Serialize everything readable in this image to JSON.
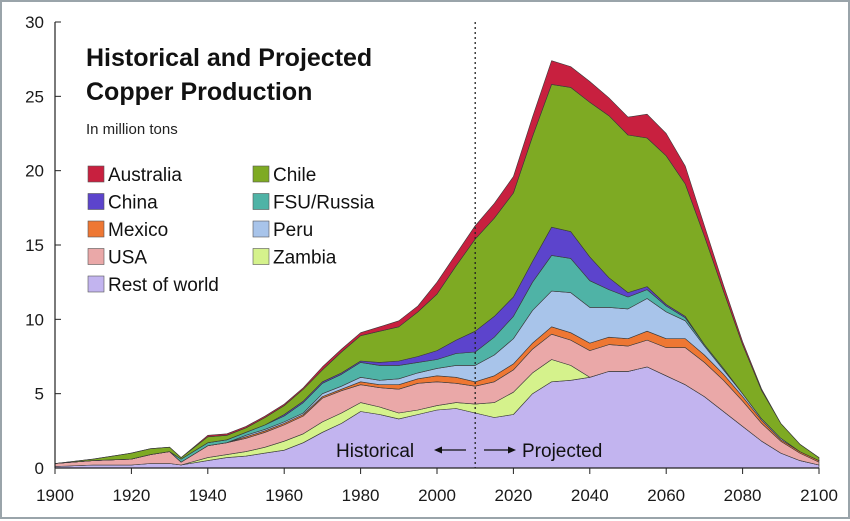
{
  "chart_data": {
    "type": "area",
    "title": "Historical and Projected Copper Production",
    "subtitle": "In million tons",
    "xlabel": "",
    "ylabel": "",
    "xlim": [
      1900,
      2100
    ],
    "ylim": [
      0,
      30
    ],
    "x_ticks": [
      1900,
      1920,
      1940,
      1960,
      1980,
      2000,
      2020,
      2040,
      2060,
      2080,
      2100
    ],
    "y_ticks": [
      0,
      5,
      10,
      15,
      20,
      25,
      30
    ],
    "divider_year": 2010,
    "annotations": {
      "historical": "Historical",
      "projected": "Projected"
    },
    "legend_position": "top-left",
    "x": [
      1900,
      1910,
      1920,
      1925,
      1930,
      1933,
      1940,
      1945,
      1950,
      1955,
      1960,
      1965,
      1970,
      1975,
      1980,
      1985,
      1990,
      1995,
      2000,
      2005,
      2010,
      2015,
      2020,
      2025,
      2030,
      2035,
      2040,
      2045,
      2050,
      2055,
      2060,
      2065,
      2070,
      2075,
      2080,
      2085,
      2090,
      2095,
      2100
    ],
    "series": [
      {
        "name": "Rest of world",
        "color": "#c2b4ef",
        "values": [
          0.1,
          0.2,
          0.2,
          0.3,
          0.3,
          0.2,
          0.5,
          0.7,
          0.8,
          1.0,
          1.2,
          1.7,
          2.4,
          3.0,
          3.8,
          3.6,
          3.3,
          3.6,
          3.9,
          4.0,
          3.7,
          3.4,
          3.6,
          5.0,
          5.8,
          5.9,
          6.1,
          6.5,
          6.5,
          6.8,
          6.2,
          5.6,
          4.8,
          3.8,
          2.8,
          1.8,
          1.0,
          0.5,
          0.2
        ]
      },
      {
        "name": "Zambia",
        "color": "#d5f28c",
        "values": [
          0.0,
          0.0,
          0.0,
          0.0,
          0.0,
          0.0,
          0.2,
          0.2,
          0.3,
          0.4,
          0.6,
          0.6,
          0.7,
          0.7,
          0.6,
          0.5,
          0.4,
          0.3,
          0.3,
          0.4,
          0.6,
          1.0,
          1.5,
          1.4,
          1.5,
          1.0,
          0.0,
          0.0,
          0.0,
          0.0,
          0.0,
          0.0,
          0.0,
          0.0,
          0.0,
          0.0,
          0.0,
          0.0,
          0.0
        ]
      },
      {
        "name": "USA",
        "color": "#eaa8a8",
        "values": [
          0.2,
          0.3,
          0.4,
          0.6,
          0.8,
          0.2,
          0.8,
          0.8,
          0.9,
          1.0,
          1.1,
          1.2,
          1.6,
          1.5,
          1.2,
          1.3,
          1.6,
          1.8,
          1.6,
          1.3,
          1.2,
          1.4,
          1.5,
          1.6,
          1.7,
          1.7,
          1.8,
          1.8,
          1.7,
          1.8,
          1.9,
          2.5,
          2.3,
          2.1,
          1.7,
          1.2,
          0.8,
          0.5,
          0.2
        ]
      },
      {
        "name": "Mexico",
        "color": "#ee7733",
        "values": [
          0.0,
          0.0,
          0.0,
          0.0,
          0.0,
          0.0,
          0.0,
          0.0,
          0.1,
          0.1,
          0.1,
          0.1,
          0.1,
          0.1,
          0.2,
          0.2,
          0.3,
          0.3,
          0.4,
          0.4,
          0.3,
          0.4,
          0.4,
          0.4,
          0.5,
          0.5,
          0.5,
          0.5,
          0.5,
          0.6,
          0.6,
          0.6,
          0.5,
          0.4,
          0.3,
          0.2,
          0.1,
          0.1,
          0.1
        ]
      },
      {
        "name": "Peru",
        "color": "#a8c4ea",
        "values": [
          0.0,
          0.0,
          0.0,
          0.0,
          0.0,
          0.0,
          0.0,
          0.0,
          0.1,
          0.1,
          0.1,
          0.1,
          0.2,
          0.2,
          0.3,
          0.3,
          0.4,
          0.4,
          0.5,
          0.8,
          1.1,
          1.4,
          1.7,
          2.2,
          2.4,
          2.7,
          2.4,
          2.0,
          2.0,
          2.2,
          1.8,
          1.2,
          0.6,
          0.3,
          0.2,
          0.1,
          0.1,
          0.0,
          0.0
        ]
      },
      {
        "name": "FSU/Russia",
        "color": "#4fb3a6",
        "values": [
          0.0,
          0.0,
          0.0,
          0.0,
          0.0,
          0.2,
          0.2,
          0.2,
          0.2,
          0.3,
          0.4,
          0.7,
          0.7,
          0.8,
          1.0,
          1.0,
          0.9,
          0.7,
          0.6,
          0.8,
          0.9,
          1.2,
          1.5,
          1.9,
          2.4,
          2.3,
          1.8,
          1.2,
          0.8,
          0.6,
          0.4,
          0.2,
          0.1,
          0.1,
          0.0,
          0.0,
          0.0,
          0.0,
          0.0
        ]
      },
      {
        "name": "China",
        "color": "#5c44cc",
        "values": [
          0.0,
          0.0,
          0.0,
          0.0,
          0.0,
          0.0,
          0.0,
          0.0,
          0.0,
          0.0,
          0.1,
          0.1,
          0.1,
          0.1,
          0.1,
          0.2,
          0.3,
          0.4,
          0.6,
          0.9,
          1.4,
          1.4,
          1.3,
          1.4,
          1.9,
          1.8,
          1.6,
          0.8,
          0.3,
          0.2,
          0.1,
          0.1,
          0.0,
          0.0,
          0.0,
          0.0,
          0.0,
          0.0,
          0.0
        ]
      },
      {
        "name": "Chile",
        "color": "#7eaa23",
        "values": [
          0.0,
          0.1,
          0.4,
          0.4,
          0.3,
          0.1,
          0.4,
          0.3,
          0.3,
          0.5,
          0.6,
          0.8,
          0.8,
          1.4,
          1.7,
          2.1,
          2.3,
          3.0,
          3.8,
          5.0,
          6.2,
          6.6,
          7.0,
          8.4,
          9.6,
          9.7,
          10.4,
          10.9,
          10.6,
          10.0,
          10.0,
          8.9,
          7.3,
          5.2,
          3.3,
          1.9,
          1.0,
          0.5,
          0.2
        ]
      },
      {
        "name": "Australia",
        "color": "#c8203f",
        "values": [
          0.0,
          0.0,
          0.0,
          0.0,
          0.0,
          0.0,
          0.1,
          0.1,
          0.1,
          0.1,
          0.1,
          0.1,
          0.2,
          0.2,
          0.2,
          0.3,
          0.4,
          0.4,
          0.8,
          0.8,
          0.9,
          1.0,
          1.1,
          1.3,
          1.6,
          1.4,
          1.4,
          1.2,
          1.2,
          1.6,
          1.5,
          1.2,
          0.7,
          0.4,
          0.2,
          0.1,
          0.0,
          0.0,
          0.0
        ]
      }
    ],
    "legend_columns": [
      [
        "Australia",
        "China",
        "Mexico",
        "USA",
        "Rest of world"
      ],
      [
        "Chile",
        "FSU/Russia",
        "Peru",
        "Zambia"
      ]
    ]
  }
}
